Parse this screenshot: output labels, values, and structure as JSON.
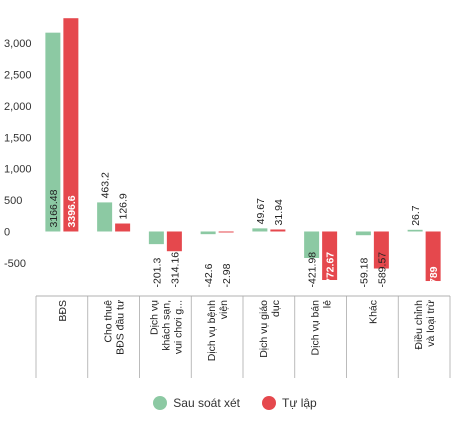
{
  "chart_data": {
    "type": "bar",
    "categories": [
      [
        "BĐS"
      ],
      [
        "Cho thuê",
        "BĐS đầu tư"
      ],
      [
        "Dịch vụ",
        "khách sạn,",
        "vui chơi g..."
      ],
      [
        "Dịch vụ bệnh",
        "viện"
      ],
      [
        "Dịch vụ giáo",
        "dục"
      ],
      [
        "Dịch vụ bán",
        "lẻ"
      ],
      [
        "Khác"
      ],
      [
        "Điều chỉnh",
        "và loại trừ"
      ]
    ],
    "series": [
      {
        "name": "Sau soát xét",
        "color": "#8cc9a3",
        "values": [
          3166.48,
          463.2,
          -201.3,
          -42.6,
          49.67,
          -421.98,
          -59.18,
          26.7
        ],
        "labels": [
          "3166.48",
          "463.2",
          "-201.3",
          "-42.6",
          "49.67",
          "-421.98",
          "-59.18",
          "26.7"
        ]
      },
      {
        "name": "Tự lập",
        "color": "#e5484d",
        "values": [
          3396.6,
          126.9,
          -314.16,
          -2.98,
          31.94,
          -772.67,
          -589.57,
          -789
        ],
        "labels": [
          "3396.6",
          "126.9",
          "-314.16",
          "-2.98",
          "31.94",
          "-772.67",
          "-589.57",
          "-789"
        ]
      }
    ],
    "yticks": [
      -500,
      0,
      500,
      1000,
      1500,
      2000,
      2500,
      3000
    ],
    "ytick_labels": [
      "-500",
      "0",
      "500",
      "1,000",
      "1,500",
      "2,000",
      "2,500",
      "3,000"
    ],
    "ylim": [
      -900,
      3400
    ],
    "grid": false,
    "legend_position": "bottom"
  }
}
